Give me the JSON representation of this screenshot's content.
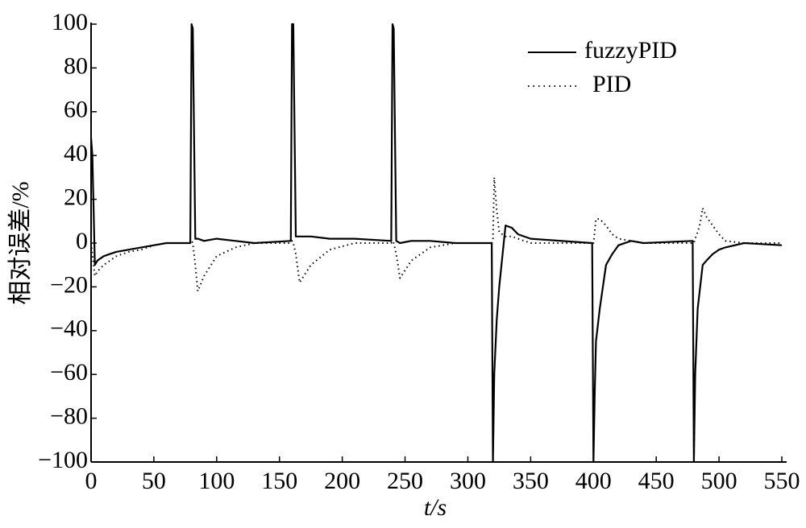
{
  "chart_data": {
    "type": "line",
    "x_label": "t/s",
    "y_label": "相对误差/%",
    "x": [
      0,
      1,
      3,
      5,
      10,
      15,
      20,
      30,
      40,
      50,
      60,
      79,
      80,
      81,
      83,
      85,
      90,
      100,
      115,
      130,
      159,
      160,
      161,
      163,
      166,
      175,
      190,
      210,
      239,
      240,
      241,
      243,
      246,
      255,
      270,
      290,
      319,
      320,
      321,
      323,
      325,
      330,
      335,
      340,
      350,
      399,
      400,
      401,
      402,
      405,
      410,
      415,
      420,
      430,
      440,
      479,
      480,
      481,
      483,
      485,
      487,
      490,
      495,
      500,
      505,
      520,
      550
    ],
    "series": [
      {
        "name": "fuzzyPID",
        "color": "#000000",
        "style": "solid",
        "values": [
          48,
          40,
          -10,
          -8,
          -6,
          -5,
          -4,
          -3,
          -2,
          -1,
          0,
          0,
          100,
          98,
          2,
          2,
          1,
          2,
          1,
          0,
          1,
          100,
          100,
          3,
          3,
          3,
          2,
          2,
          1,
          100,
          98,
          1,
          0,
          1,
          1,
          0,
          0,
          -100,
          -60,
          -35,
          -20,
          8,
          7,
          4,
          2,
          0,
          -100,
          -70,
          -45,
          -30,
          -10,
          -5,
          -1,
          1,
          0,
          1,
          -100,
          -60,
          -30,
          -20,
          -10,
          -8,
          -5,
          -3,
          -2,
          0,
          -1
        ]
      },
      {
        "name": "PID",
        "color": "#000000",
        "style": "dotted",
        "values": [
          0,
          -5,
          -15,
          -13,
          -10,
          -8,
          -6,
          -4,
          -3,
          -1,
          0,
          0,
          1,
          0,
          -10,
          -22,
          -15,
          -6,
          -2,
          0,
          0,
          1,
          0,
          -5,
          -18,
          -10,
          -3,
          0,
          0,
          1,
          0,
          -5,
          -16,
          -8,
          -2,
          0,
          0,
          2,
          30,
          15,
          5,
          3,
          3,
          2,
          0,
          0,
          0,
          5,
          11,
          11,
          8,
          4,
          2,
          1,
          0,
          0,
          0,
          2,
          5,
          9,
          16,
          12,
          8,
          4,
          1,
          0,
          0
        ]
      }
    ],
    "xlim": [
      0,
      550
    ],
    "ylim": [
      -100,
      100
    ],
    "xticks": [
      0,
      50,
      100,
      150,
      200,
      250,
      300,
      350,
      400,
      450,
      500,
      550
    ],
    "yticks": [
      {
        "value": -100,
        "label": "−100"
      },
      {
        "value": -80,
        "label": "−80"
      },
      {
        "value": -60,
        "label": "−60"
      },
      {
        "value": -40,
        "label": "−40"
      },
      {
        "value": -20,
        "label": "−20"
      },
      0,
      20,
      40,
      60,
      80,
      100
    ],
    "legend": "upper right",
    "grid": false
  }
}
